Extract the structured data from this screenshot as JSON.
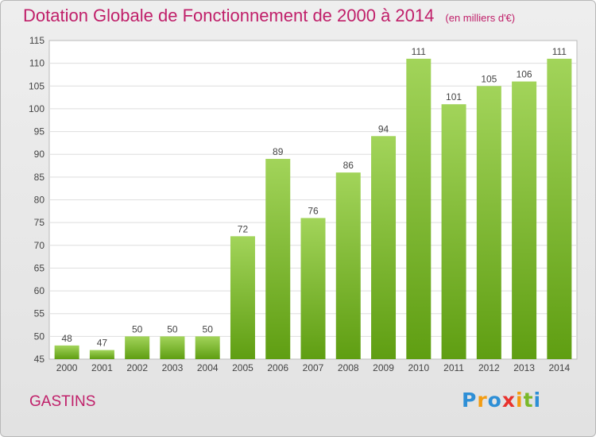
{
  "header": {
    "title": "Dotation Globale de Fonctionnement de 2000 à 2014",
    "subtitle": "(en milliers d'€)"
  },
  "footer": {
    "commune": "GASTINS",
    "logo_letters": [
      "P",
      "r",
      "o",
      "x",
      "i",
      "t",
      "i"
    ]
  },
  "colors": {
    "accent": "#c0206a",
    "bar_top": "#a2d45a",
    "bar_bottom": "#5f9e12"
  },
  "chart_data": {
    "type": "bar",
    "title": "Dotation Globale de Fonctionnement de 2000 à 2014",
    "categories": [
      "2000",
      "2001",
      "2002",
      "2003",
      "2004",
      "2005",
      "2006",
      "2007",
      "2008",
      "2009",
      "2010",
      "2011",
      "2012",
      "2013",
      "2014"
    ],
    "values": [
      48,
      47,
      50,
      50,
      50,
      72,
      89,
      76,
      86,
      94,
      111,
      101,
      105,
      106,
      111
    ],
    "ylim": [
      45,
      115
    ],
    "yticks": [
      45,
      50,
      55,
      60,
      65,
      70,
      75,
      80,
      85,
      90,
      95,
      100,
      105,
      110,
      115
    ],
    "grid": true,
    "data_labels": true
  }
}
